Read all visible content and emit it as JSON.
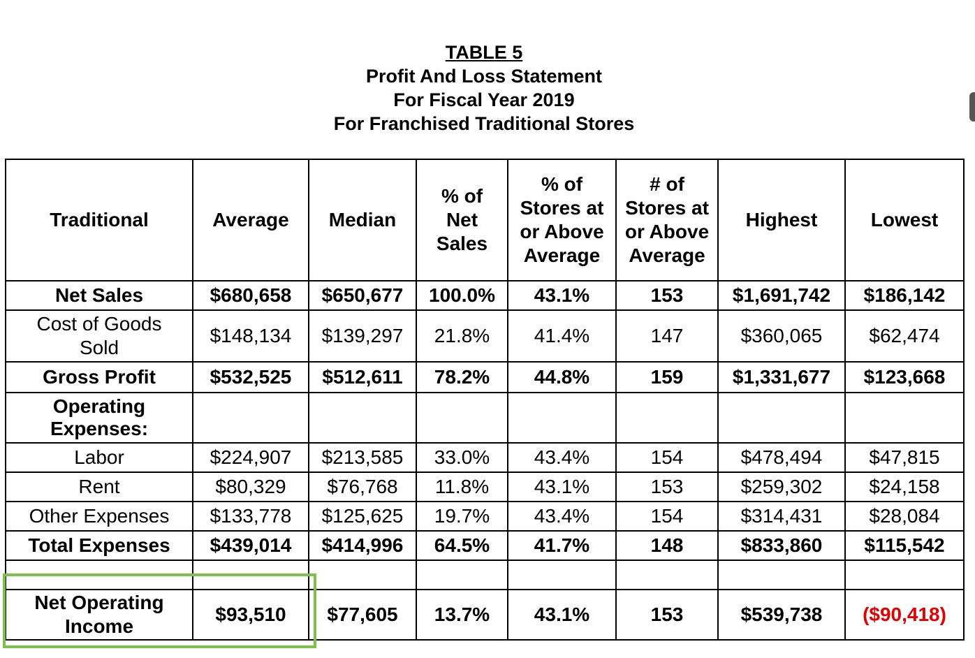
{
  "title": {
    "line1": "TABLE 5",
    "line2": "Profit And Loss Statement",
    "line3": "For Fiscal Year 2019",
    "line4": "For Franchised Traditional Stores"
  },
  "headers": {
    "traditional": "Traditional",
    "average": "Average",
    "median": "Median",
    "pct_net_sales": "% of Net Sales",
    "pct_stores_at_or_above": "% of Stores at or Above Average",
    "num_stores_at_or_above": "# of Stores at or Above Average",
    "highest": "Highest",
    "lowest": "Lowest"
  },
  "rows": {
    "net_sales": {
      "label": "Net Sales",
      "average": "$680,658",
      "median": "$650,677",
      "pct": "100.0%",
      "pct_stores": "43.1%",
      "num_stores": "153",
      "highest": "$1,691,742",
      "lowest": "$186,142"
    },
    "cogs": {
      "label": "Cost of Goods Sold",
      "average": "$148,134",
      "median": "$139,297",
      "pct": "21.8%",
      "pct_stores": "41.4%",
      "num_stores": "147",
      "highest": "$360,065",
      "lowest": "$62,474"
    },
    "gross_profit": {
      "label": "Gross Profit",
      "average": "$532,525",
      "median": "$512,611",
      "pct": "78.2%",
      "pct_stores": "44.8%",
      "num_stores": "159",
      "highest": "$1,331,677",
      "lowest": "$123,668"
    },
    "operating_expenses": {
      "label": "Operating Expenses:"
    },
    "labor": {
      "label": "Labor",
      "average": "$224,907",
      "median": "$213,585",
      "pct": "33.0%",
      "pct_stores": "43.4%",
      "num_stores": "154",
      "highest": "$478,494",
      "lowest": "$47,815"
    },
    "rent": {
      "label": "Rent",
      "average": "$80,329",
      "median": "$76,768",
      "pct": "11.8%",
      "pct_stores": "43.1%",
      "num_stores": "153",
      "highest": "$259,302",
      "lowest": "$24,158"
    },
    "other_expenses": {
      "label": "Other Expenses",
      "average": "$133,778",
      "median": "$125,625",
      "pct": "19.7%",
      "pct_stores": "43.4%",
      "num_stores": "154",
      "highest": "$314,431",
      "lowest": "$28,084"
    },
    "total_expenses": {
      "label": "Total Expenses",
      "average": "$439,014",
      "median": "$414,996",
      "pct": "64.5%",
      "pct_stores": "41.7%",
      "num_stores": "148",
      "highest": "$833,860",
      "lowest": "$115,542"
    },
    "net_operating_income": {
      "label": "Net Operating Income",
      "average": "$93,510",
      "median": "$77,605",
      "pct": "13.7%",
      "pct_stores": "43.1%",
      "num_stores": "153",
      "highest": "$539,738",
      "lowest": "($90,418)"
    }
  },
  "colors": {
    "negative": "#e30000",
    "highlight": "#7cc24a"
  }
}
